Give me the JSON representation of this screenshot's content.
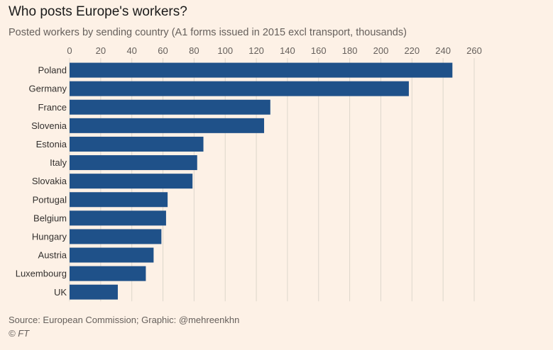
{
  "colors": {
    "background": "#fdf1e6",
    "bar": "#1f5189",
    "grid": "#ddd6cc"
  },
  "footer": {
    "source": "Source: European Commission; Graphic: @mehreenkhn",
    "copyright": "© FT"
  },
  "chart_data": {
    "type": "bar",
    "orientation": "horizontal",
    "title": "Who posts Europe's workers?",
    "subtitle": "Posted workers by sending country (A1 forms issued in 2015 excl transport, thousands)",
    "xlabel": "",
    "ylabel": "",
    "xlim": [
      0,
      260
    ],
    "xticks": [
      0,
      20,
      40,
      60,
      80,
      100,
      120,
      140,
      160,
      180,
      200,
      220,
      240,
      260
    ],
    "grid": true,
    "x_axis_position": "top",
    "categories": [
      "Poland",
      "Germany",
      "France",
      "Slovenia",
      "Estonia",
      "Italy",
      "Slovakia",
      "Portugal",
      "Belgium",
      "Hungary",
      "Austria",
      "Luxembourg",
      "UK"
    ],
    "values": [
      246,
      218,
      129,
      125,
      86,
      82,
      79,
      63,
      62,
      59,
      54,
      49,
      31
    ]
  }
}
